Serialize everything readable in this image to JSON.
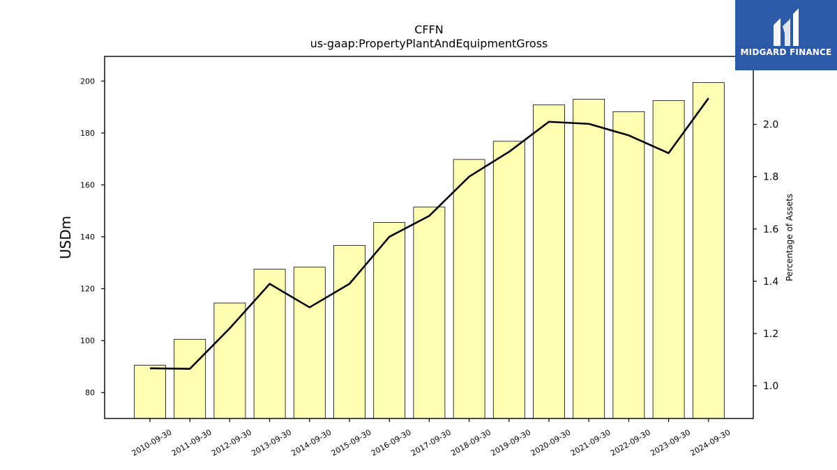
{
  "chart_data": {
    "type": "bar",
    "title": "CFFN",
    "subtitle": "us-gaap:PropertyPlantAndEquipmentGross",
    "ylabel": "USDm",
    "y2label": "Percentage of Assets",
    "categories": [
      "2010-09-30",
      "2011-09-30",
      "2012-09-30",
      "2013-09-30",
      "2014-09-30",
      "2015-09-30",
      "2016-09-30",
      "2017-09-30",
      "2018-09-30",
      "2019-09-30",
      "2020-09-30",
      "2021-09-30",
      "2022-09-30",
      "2023-09-30",
      "2024-09-30"
    ],
    "series": [
      {
        "type": "bar",
        "axis": "left",
        "values": [
          90.5,
          100.5,
          114.5,
          127.5,
          128.3,
          136.7,
          145.5,
          151.5,
          169.8,
          176.8,
          190.8,
          193.0,
          188.2,
          192.5,
          199.4
        ]
      },
      {
        "type": "line",
        "axis": "right",
        "values": [
          1.067,
          1.065,
          1.22,
          1.39,
          1.3,
          1.39,
          1.57,
          1.65,
          1.8,
          1.895,
          2.01,
          2.002,
          1.958,
          1.89,
          2.1
        ]
      }
    ],
    "ylim": [
      70,
      209.5
    ],
    "y2lim": [
      0.875,
      2.26
    ],
    "yticks": [
      80,
      100,
      120,
      140,
      160,
      180,
      200
    ],
    "y2ticks": [
      1.0,
      1.2,
      1.4,
      1.6,
      1.8,
      2.0
    ],
    "y2tick_labels": [
      "1.0",
      "1.2",
      "1.4",
      "1.6",
      "1.8",
      "2.0"
    ],
    "bar_color": "#ffffb3",
    "bar_edge": "#000000",
    "line_color": "#000000"
  },
  "logo": {
    "text": "MIDGARD FINANCE",
    "bg": "#2d5aa8"
  }
}
